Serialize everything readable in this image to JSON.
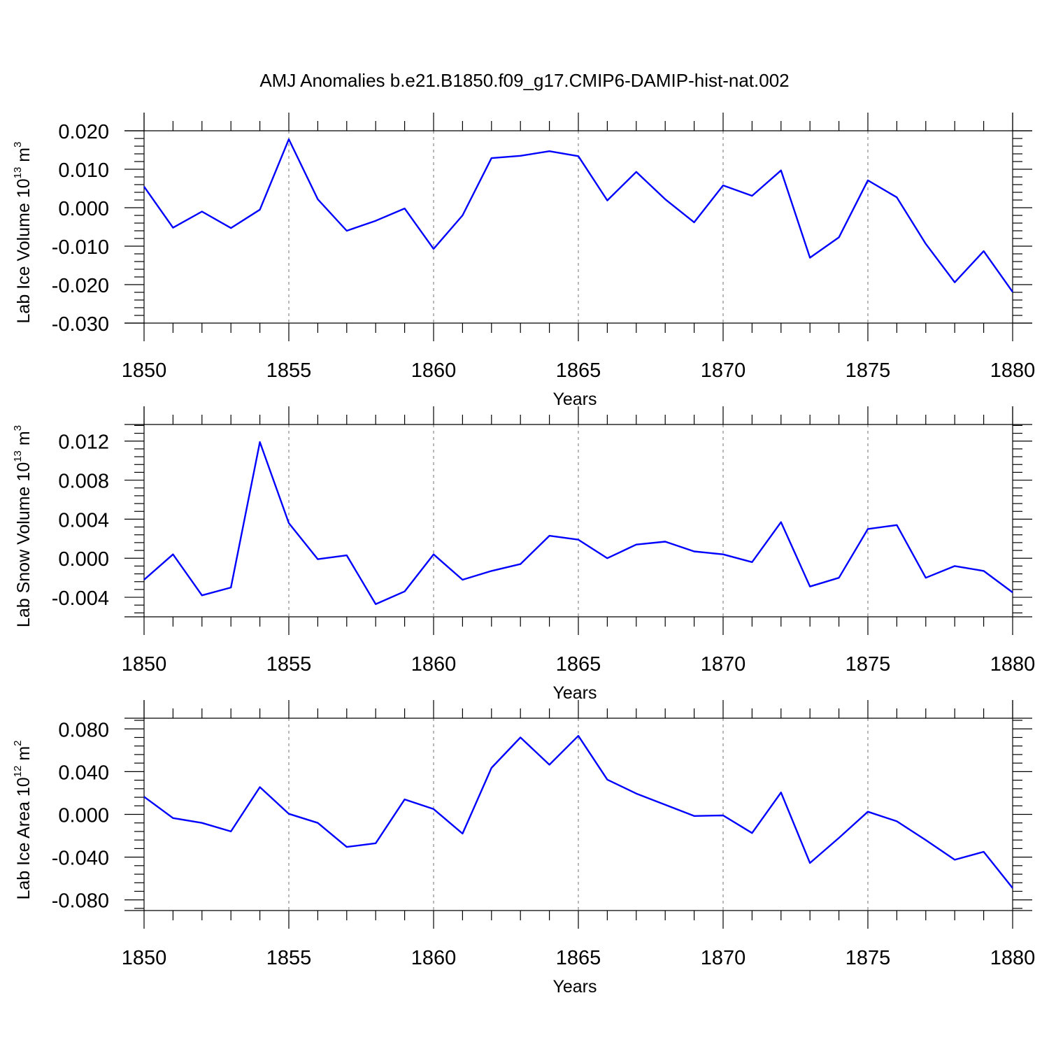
{
  "title": "AMJ Anomalies b.e21.B1850.f09_g17.CMIP6-DAMIP-hist-nat.002",
  "colors": {
    "series": "#0000ff",
    "grid": "#888888",
    "frame": "#000000"
  },
  "chart_data": [
    {
      "type": "line",
      "ylabel_main": "Lab Ice Volume 10",
      "ylabel_exp": "13",
      "ylabel_unit": "m",
      "ylabel_unit_exp": "3",
      "xlabel": "Years",
      "xlim": [
        1850,
        1880
      ],
      "ylim": [
        -0.03,
        0.02
      ],
      "yticks": [
        -0.03,
        -0.02,
        -0.01,
        0.0,
        0.01,
        0.02
      ],
      "ytick_labels": [
        "-0.030",
        "-0.020",
        "-0.010",
        "0.000",
        "0.010",
        "0.020"
      ],
      "xticks": [
        1850,
        1855,
        1860,
        1865,
        1870,
        1875,
        1880
      ],
      "xtick_labels": [
        "1850",
        "1855",
        "1860",
        "1865",
        "1870",
        "1875",
        "1880"
      ],
      "grid_x": [
        1855,
        1860,
        1865,
        1870,
        1875
      ],
      "x": [
        1850,
        1851,
        1852,
        1853,
        1854,
        1855,
        1856,
        1857,
        1858,
        1859,
        1860,
        1861,
        1862,
        1863,
        1864,
        1865,
        1866,
        1867,
        1868,
        1869,
        1870,
        1871,
        1872,
        1873,
        1874,
        1875,
        1876,
        1877,
        1878,
        1879,
        1880
      ],
      "values": [
        0.0055,
        -0.0052,
        -0.001,
        -0.0053,
        -0.0005,
        0.0178,
        0.0022,
        -0.006,
        -0.0034,
        -0.0002,
        -0.0107,
        -0.002,
        0.0129,
        0.0135,
        0.0147,
        0.0134,
        0.0019,
        0.0093,
        0.0022,
        -0.0038,
        0.0058,
        0.0031,
        0.0097,
        -0.013,
        -0.0077,
        0.0071,
        0.0027,
        -0.0094,
        -0.0194,
        -0.0113,
        -0.0219
      ]
    },
    {
      "type": "line",
      "ylabel_main": "Lab Snow Volume 10",
      "ylabel_exp": "13",
      "ylabel_unit": "m",
      "ylabel_unit_exp": "3",
      "xlabel": "Years",
      "xlim": [
        1850,
        1880
      ],
      "ylim": [
        -0.006,
        0.0137
      ],
      "yticks": [
        -0.004,
        0.0,
        0.004,
        0.008,
        0.012
      ],
      "ytick_labels": [
        "-0.004",
        "0.000",
        "0.004",
        "0.008",
        "0.012"
      ],
      "xticks": [
        1850,
        1855,
        1860,
        1865,
        1870,
        1875,
        1880
      ],
      "xtick_labels": [
        "1850",
        "1855",
        "1860",
        "1865",
        "1870",
        "1875",
        "1880"
      ],
      "grid_x": [
        1855,
        1860,
        1865,
        1870,
        1875
      ],
      "x": [
        1850,
        1851,
        1852,
        1853,
        1854,
        1855,
        1856,
        1857,
        1858,
        1859,
        1860,
        1861,
        1862,
        1863,
        1864,
        1865,
        1866,
        1867,
        1868,
        1869,
        1870,
        1871,
        1872,
        1873,
        1874,
        1875,
        1876,
        1877,
        1878,
        1879,
        1880
      ],
      "values": [
        -0.0022,
        0.0004,
        -0.0038,
        -0.003,
        0.0119,
        0.0036,
        -0.0001,
        0.0003,
        -0.0047,
        -0.0034,
        0.0004,
        -0.0022,
        -0.0013,
        -0.0006,
        0.0023,
        0.0019,
        0.0,
        0.0014,
        0.0017,
        0.0007,
        0.0004,
        -0.0004,
        0.0037,
        -0.0029,
        -0.002,
        0.003,
        0.0034,
        -0.002,
        -0.0008,
        -0.0013,
        -0.0035
      ]
    },
    {
      "type": "line",
      "ylabel_main": "Lab Ice Area 10",
      "ylabel_exp": "12",
      "ylabel_unit": "m",
      "ylabel_unit_exp": "2",
      "xlabel": "Years",
      "xlim": [
        1850,
        1880
      ],
      "ylim": [
        -0.09,
        0.09
      ],
      "yticks": [
        -0.08,
        -0.04,
        0.0,
        0.04,
        0.08
      ],
      "ytick_labels": [
        "-0.080",
        "-0.040",
        "0.000",
        "0.040",
        "0.080"
      ],
      "xticks": [
        1850,
        1855,
        1860,
        1865,
        1870,
        1875,
        1880
      ],
      "xtick_labels": [
        "1850",
        "1855",
        "1860",
        "1865",
        "1870",
        "1875",
        "1880"
      ],
      "grid_x": [
        1855,
        1860,
        1865,
        1870,
        1875
      ],
      "x": [
        1850,
        1851,
        1852,
        1853,
        1854,
        1855,
        1856,
        1857,
        1858,
        1859,
        1860,
        1861,
        1862,
        1863,
        1864,
        1865,
        1866,
        1867,
        1868,
        1869,
        1870,
        1871,
        1872,
        1873,
        1874,
        1875,
        1876,
        1877,
        1878,
        1879,
        1880
      ],
      "values": [
        0.0165,
        -0.0035,
        -0.008,
        -0.016,
        0.0255,
        0.0005,
        -0.008,
        -0.0305,
        -0.027,
        0.014,
        0.005,
        -0.018,
        0.0435,
        0.072,
        0.0465,
        0.0735,
        0.0325,
        0.0195,
        0.009,
        -0.0015,
        -0.001,
        -0.0175,
        0.0205,
        -0.0455,
        -0.022,
        0.0025,
        -0.0065,
        -0.024,
        -0.0425,
        -0.035,
        -0.069
      ]
    }
  ]
}
